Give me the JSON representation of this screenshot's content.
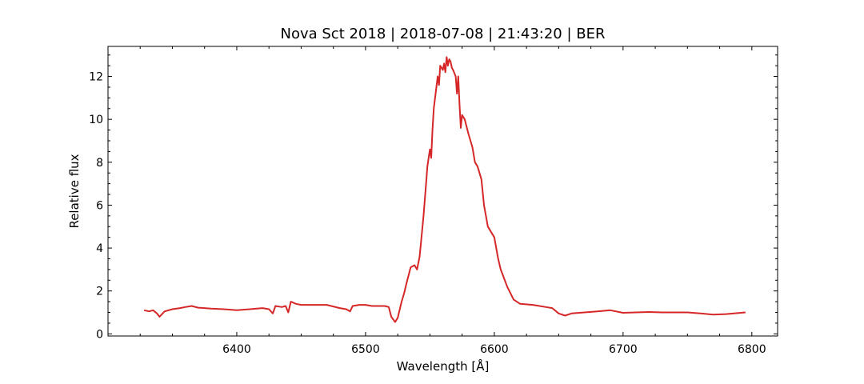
{
  "chart_data": {
    "type": "line",
    "title": "Nova Sct 2018 | 2018-07-08 | 21:43:20 | BER",
    "xlabel": "Wavelength [Å]",
    "ylabel": "Relative flux",
    "xlim": [
      6300,
      6820
    ],
    "ylim": [
      -0.1,
      13.4
    ],
    "x_ticks": [
      6400,
      6500,
      6600,
      6700,
      6800
    ],
    "y_ticks": [
      0,
      2,
      4,
      6,
      8,
      10,
      12
    ],
    "grid": false,
    "series": [
      {
        "color": "#d62728",
        "x": [
          6328,
          6332,
          6335,
          6338,
          6340,
          6344,
          6350,
          6356,
          6360,
          6365,
          6370,
          6375,
          6380,
          6390,
          6400,
          6410,
          6420,
          6425,
          6428,
          6430,
          6435,
          6438,
          6440,
          6442,
          6446,
          6450,
          6460,
          6470,
          6480,
          6485,
          6488,
          6490,
          6495,
          6500,
          6505,
          6510,
          6515,
          6518,
          6520,
          6523,
          6525,
          6528,
          6530,
          6532,
          6535,
          6538,
          6540,
          6542,
          6543,
          6545,
          6547,
          6548,
          6550,
          6551,
          6552,
          6553,
          6555,
          6556,
          6557,
          6558,
          6560,
          6561,
          6562,
          6563,
          6564,
          6565,
          6566,
          6567,
          6568,
          6570,
          6571,
          6572,
          6573,
          6574,
          6575,
          6577,
          6580,
          6583,
          6585,
          6587,
          6590,
          6592,
          6595,
          6600,
          6603,
          6605,
          6610,
          6615,
          6620,
          6630,
          6640,
          6645,
          6650,
          6655,
          6660,
          6670,
          6680,
          6690,
          6700,
          6710,
          6720,
          6730,
          6740,
          6750,
          6760,
          6770,
          6780,
          6795
        ],
        "y": [
          1.1,
          1.05,
          1.1,
          0.95,
          0.8,
          1.05,
          1.15,
          1.2,
          1.25,
          1.3,
          1.22,
          1.2,
          1.18,
          1.15,
          1.1,
          1.15,
          1.2,
          1.15,
          0.95,
          1.3,
          1.25,
          1.3,
          1.0,
          1.5,
          1.4,
          1.35,
          1.35,
          1.35,
          1.2,
          1.15,
          1.05,
          1.3,
          1.35,
          1.35,
          1.3,
          1.3,
          1.3,
          1.25,
          0.8,
          0.55,
          0.75,
          1.5,
          1.9,
          2.4,
          3.1,
          3.2,
          3.0,
          3.6,
          4.2,
          5.5,
          7.0,
          7.8,
          8.6,
          8.2,
          9.5,
          10.5,
          11.5,
          12.0,
          11.6,
          12.5,
          12.3,
          12.6,
          12.2,
          12.9,
          12.5,
          12.8,
          12.7,
          12.4,
          12.3,
          12.0,
          11.2,
          12.0,
          10.7,
          9.6,
          10.2,
          10.0,
          9.3,
          8.7,
          8.0,
          7.8,
          7.2,
          6.0,
          5.0,
          4.5,
          3.5,
          3.0,
          2.2,
          1.6,
          1.4,
          1.35,
          1.25,
          1.2,
          0.95,
          0.85,
          0.95,
          1.0,
          1.05,
          1.1,
          0.98,
          1.0,
          1.02,
          1.0,
          1.0,
          1.0,
          0.95,
          0.9,
          0.92,
          1.0
        ]
      }
    ]
  }
}
